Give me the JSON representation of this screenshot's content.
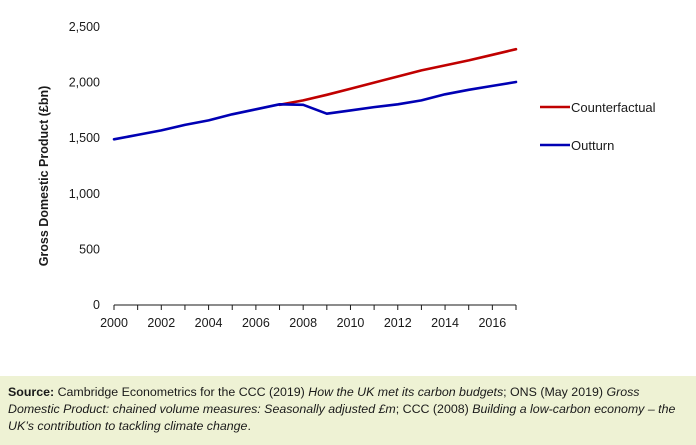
{
  "chart_data": {
    "type": "line",
    "title": "",
    "xlabel": "",
    "ylabel": "Gross Domestic Product (£bn)",
    "xlim": [
      2000,
      2017
    ],
    "ylim": [
      0,
      2500
    ],
    "x_ticks": [
      2000,
      2002,
      2004,
      2006,
      2008,
      2010,
      2012,
      2014,
      2016
    ],
    "x_tick_labels": [
      "2000",
      "2002",
      "2004",
      "2006",
      "2008",
      "2010",
      "2012",
      "2014",
      "2016"
    ],
    "y_ticks": [
      0,
      500,
      1000,
      1500,
      2000,
      2500
    ],
    "y_tick_labels": [
      "0",
      "500",
      "1,000",
      "1,500",
      "2,000",
      "2,500"
    ],
    "grid": false,
    "legend_position": "right",
    "series": [
      {
        "name": "Counterfactual",
        "color": "#c00000",
        "x": [
          2007,
          2008,
          2009,
          2010,
          2011,
          2012,
          2013,
          2014,
          2015,
          2016,
          2017
        ],
        "y": [
          1800,
          1840,
          1890,
          1945,
          2000,
          2055,
          2110,
          2155,
          2200,
          2250,
          2300
        ]
      },
      {
        "name": "Outturn",
        "color": "#0000b4",
        "x": [
          2000,
          2001,
          2002,
          2003,
          2004,
          2005,
          2006,
          2007,
          2008,
          2009,
          2010,
          2011,
          2012,
          2013,
          2014,
          2015,
          2016,
          2017
        ],
        "y": [
          1490,
          1530,
          1570,
          1620,
          1660,
          1715,
          1760,
          1805,
          1800,
          1720,
          1750,
          1780,
          1805,
          1840,
          1895,
          1935,
          1970,
          2005
        ]
      }
    ]
  },
  "source": {
    "label": "Source:",
    "part1": " Cambridge Econometrics for the CCC (2019) ",
    "italic1": "How the UK met its carbon budgets",
    "part2": "; ONS (May 2019) ",
    "italic2": "Gross Domestic Product: chained volume measures: Seasonally adjusted £m",
    "part3": "; CCC (2008) ",
    "italic3": "Building a low-carbon economy – the UK’s contribution to tackling climate change",
    "part4": "."
  }
}
